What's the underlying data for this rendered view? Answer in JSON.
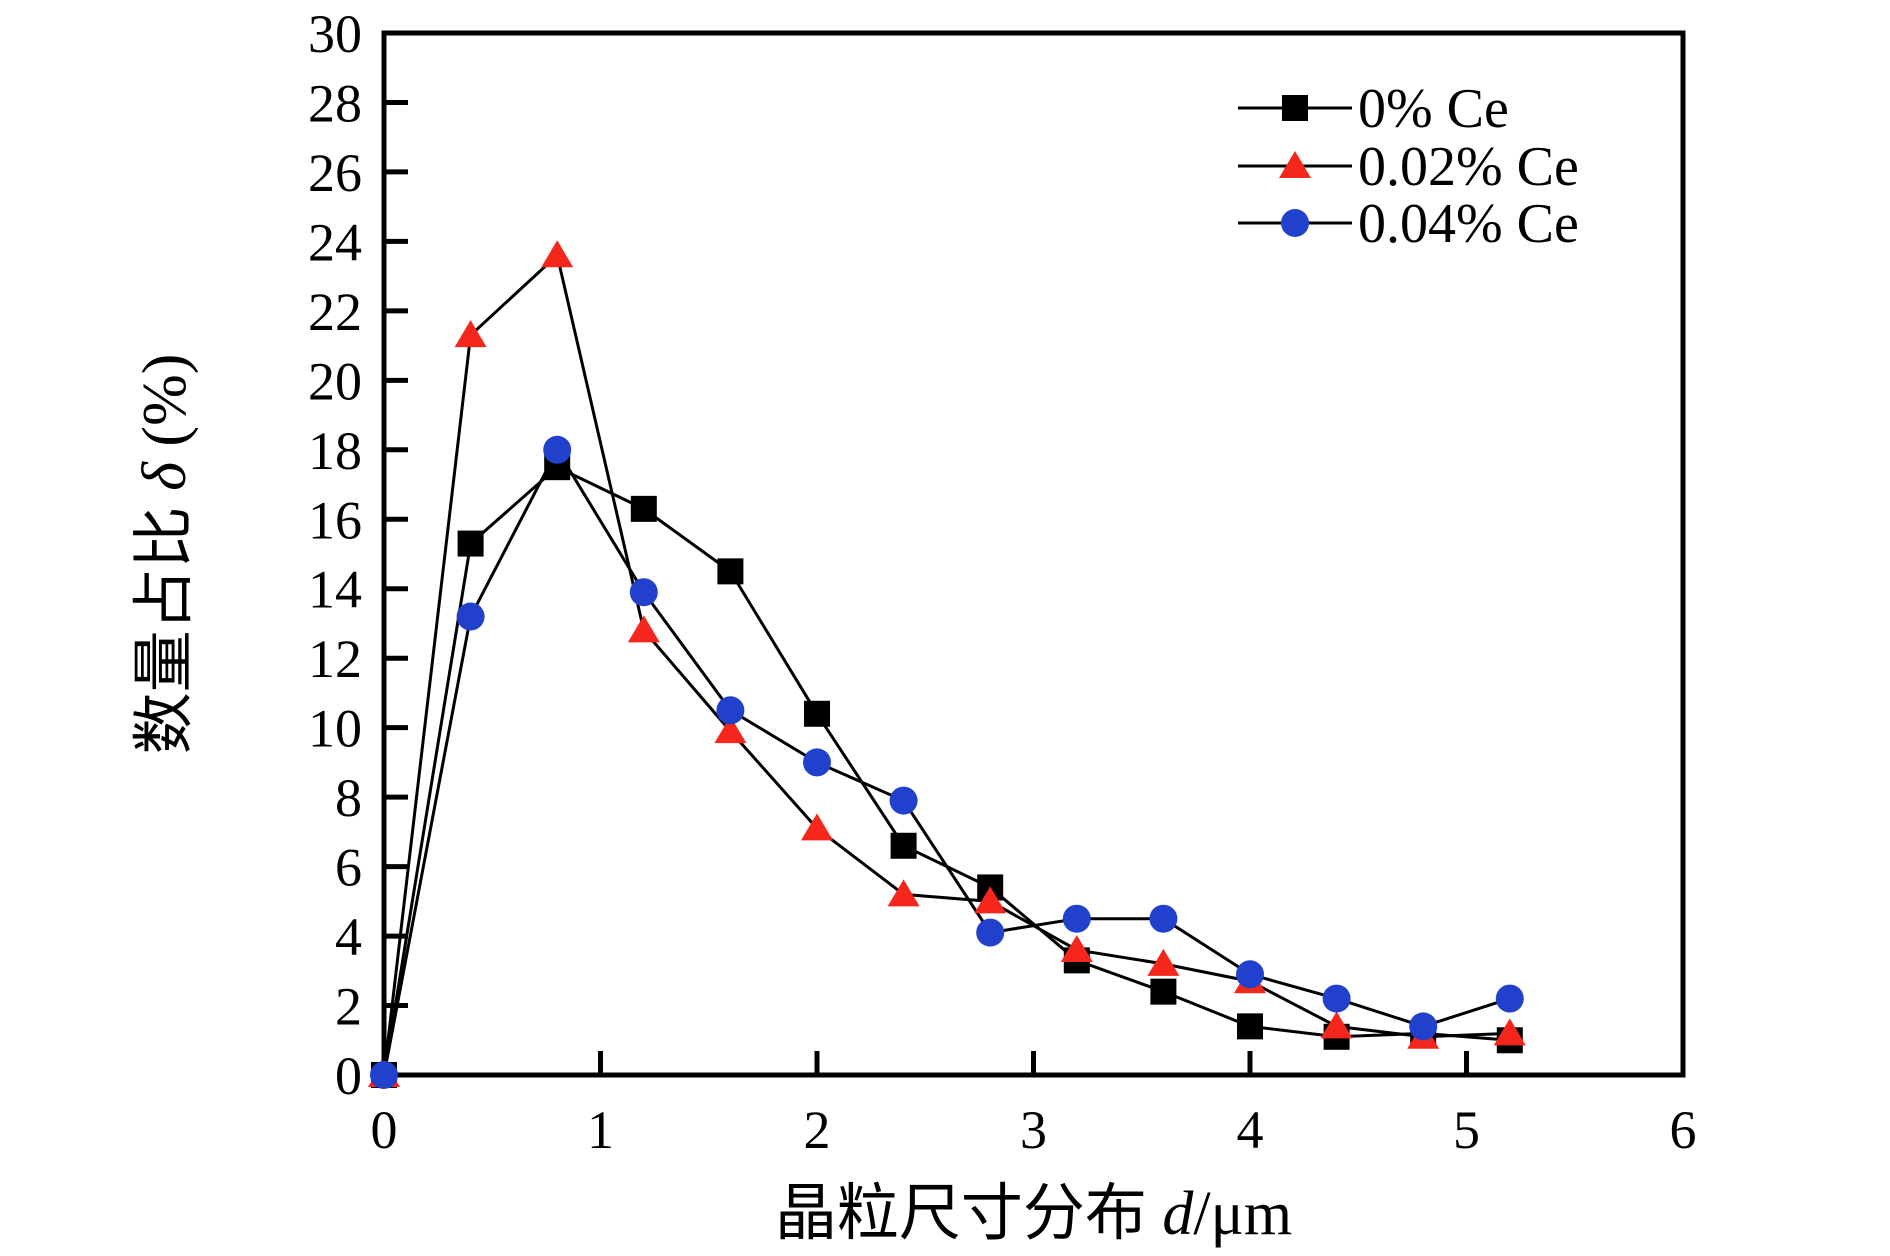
{
  "figure": {
    "background": "#ffffff",
    "frame_color": "#000000",
    "line_color": "#000000"
  },
  "chart_data": {
    "type": "line",
    "title": "",
    "xlabel": "晶粒尺寸分布 d/μm",
    "ylabel": "数量占比 δ (%)",
    "xlabel_parts": {
      "text": "晶粒尺寸分布 ",
      "symbol": "d",
      "unit": "/μm"
    },
    "ylabel_parts": {
      "text": "数量占比 ",
      "symbol": "δ",
      "unit": " (%)"
    },
    "xlim": [
      0,
      6
    ],
    "ylim": [
      0,
      30
    ],
    "x_ticks": [
      0,
      1,
      2,
      3,
      4,
      5,
      6
    ],
    "y_ticks": [
      0,
      2,
      4,
      6,
      8,
      10,
      12,
      14,
      16,
      18,
      20,
      22,
      24,
      26,
      28,
      30
    ],
    "grid": false,
    "legend_position": "top-right",
    "x": [
      0,
      0.4,
      0.8,
      1.2,
      1.6,
      2.0,
      2.4,
      2.8,
      3.2,
      3.6,
      4.0,
      4.4,
      4.8,
      5.2
    ],
    "series": [
      {
        "name": "0% Ce",
        "marker": "square",
        "marker_color": "#000000",
        "line_color": "#000000",
        "values": [
          0,
          15.3,
          17.5,
          16.3,
          14.5,
          10.4,
          6.6,
          5.4,
          3.3,
          2.4,
          1.4,
          1.1,
          1.2,
          1.0
        ]
      },
      {
        "name": "0.02% Ce",
        "marker": "triangle",
        "marker_color": "#f5271c",
        "line_color": "#000000",
        "values": [
          0,
          21.3,
          23.6,
          12.8,
          9.9,
          7.1,
          5.2,
          5.0,
          3.6,
          3.2,
          2.7,
          1.4,
          1.1,
          1.2
        ]
      },
      {
        "name": "0.04% Ce",
        "marker": "circle",
        "marker_color": "#2140cc",
        "line_color": "#000000",
        "values": [
          0,
          13.2,
          18.0,
          13.9,
          10.5,
          9.0,
          7.9,
          4.1,
          4.5,
          4.5,
          2.9,
          2.2,
          1.4,
          2.2
        ]
      }
    ]
  }
}
